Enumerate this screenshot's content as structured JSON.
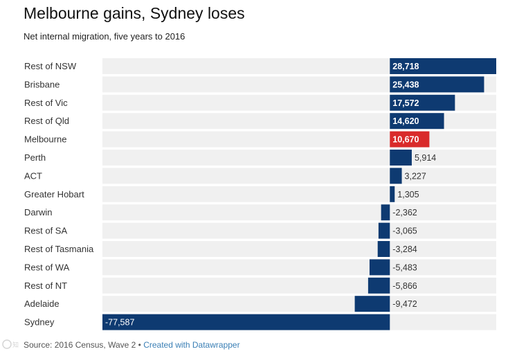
{
  "title": "Melbourne gains, Sydney loses",
  "subtitle": "Net internal migration, five years to 2016",
  "footer": {
    "source": "Source: 2016 Census, Wave 2",
    "sep": " • ",
    "credit": "Created with Datawrapper"
  },
  "colors": {
    "bar": "#0e3a71",
    "highlight": "#d92a2a",
    "row_bg": "#f0f0f0"
  },
  "chart_data": {
    "type": "bar",
    "orientation": "horizontal",
    "title": "Melbourne gains, Sydney loses",
    "subtitle": "Net internal migration, five years to 2016",
    "categories": [
      "Rest of NSW",
      "Brisbane",
      "Rest of Vic",
      "Rest of Qld",
      "Melbourne",
      "Perth",
      "ACT",
      "Greater Hobart",
      "Darwin",
      "Rest of SA",
      "Rest of Tasmania",
      "Rest of WA",
      "Rest of NT",
      "Adelaide",
      "Sydney"
    ],
    "values": [
      28718,
      25438,
      17572,
      14620,
      10670,
      5914,
      3227,
      1305,
      -2362,
      -3065,
      -3284,
      -5483,
      -5866,
      -9472,
      -77587
    ],
    "value_labels": [
      "28,718",
      "25,438",
      "17,572",
      "14,620",
      "10,670",
      "5,914",
      "3,227",
      "1,305",
      "-2,362",
      "-3,065",
      "-3,284",
      "-5,483",
      "-5,866",
      "-9,472",
      "-77,587"
    ],
    "highlight": "Melbourne",
    "xlim": [
      -77587,
      28718
    ],
    "grid": false
  }
}
